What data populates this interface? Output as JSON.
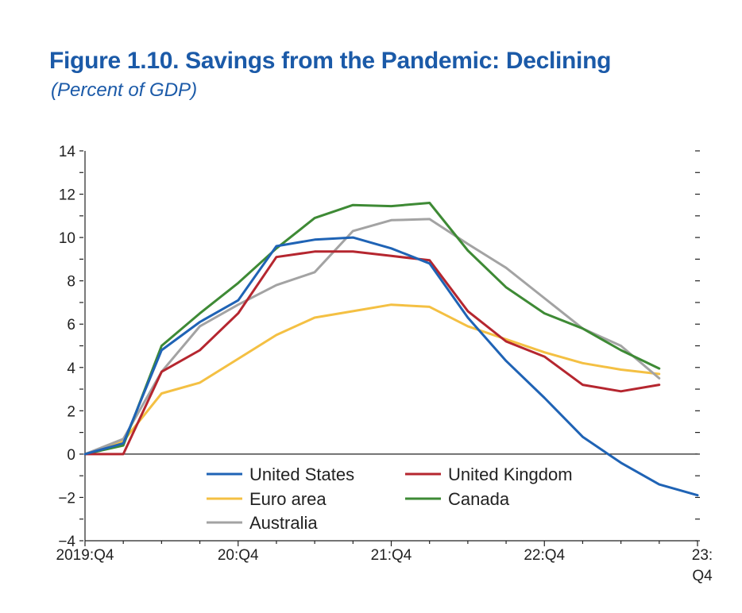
{
  "title": "Figure 1.10.  Savings from the Pandemic: Declining",
  "subtitle": "(Percent of GDP)",
  "chart_data": {
    "type": "line",
    "x": [
      "2019:Q4",
      "20:Q1",
      "20:Q2",
      "20:Q3",
      "20:Q4",
      "21:Q1",
      "21:Q2",
      "21:Q3",
      "21:Q4",
      "22:Q1",
      "22:Q2",
      "22:Q3",
      "22:Q4",
      "23:Q1",
      "23:Q2",
      "23:Q3",
      "23:Q4"
    ],
    "x_tick_labels": [
      {
        "index": 0,
        "lines": [
          "2019:Q4"
        ]
      },
      {
        "index": 4,
        "lines": [
          "20:Q4"
        ]
      },
      {
        "index": 8,
        "lines": [
          "21:Q4"
        ]
      },
      {
        "index": 12,
        "lines": [
          "22:Q4"
        ]
      },
      {
        "index": 16,
        "lines": [
          "23:",
          "Q4"
        ]
      }
    ],
    "y_ticks": [
      -4,
      -2,
      0,
      2,
      4,
      6,
      8,
      10,
      12,
      14
    ],
    "y_tick_labels": [
      "−4",
      "−2",
      "0",
      "2",
      "4",
      "6",
      "8",
      "10",
      "12",
      "14"
    ],
    "ylim": [
      -4,
      14
    ],
    "xlabel": "",
    "ylabel": "",
    "grid": false,
    "legend_position": "lower-center",
    "series": [
      {
        "name": "United States",
        "color": "#1f63b5",
        "values": [
          0,
          0.5,
          4.8,
          6.1,
          7.1,
          9.6,
          9.9,
          10.0,
          9.5,
          8.8,
          6.3,
          4.3,
          2.6,
          0.8,
          -0.4,
          -1.4,
          -1.9
        ]
      },
      {
        "name": "United Kingdom",
        "color": "#b5262f",
        "values": [
          0,
          0,
          3.8,
          4.8,
          6.5,
          9.1,
          9.35,
          9.35,
          9.15,
          8.95,
          6.6,
          5.2,
          4.5,
          3.2,
          2.9,
          3.2,
          null
        ]
      },
      {
        "name": "Euro area",
        "color": "#f4c043",
        "values": [
          0,
          0.6,
          2.8,
          3.3,
          4.4,
          5.5,
          6.3,
          6.6,
          6.9,
          6.8,
          5.9,
          5.3,
          4.7,
          4.2,
          3.9,
          3.7,
          null
        ]
      },
      {
        "name": "Canada",
        "color": "#3e8a35",
        "values": [
          0,
          0.4,
          5.0,
          6.5,
          7.9,
          9.5,
          10.9,
          11.5,
          11.45,
          11.6,
          9.4,
          7.7,
          6.5,
          5.8,
          4.8,
          3.95,
          null
        ]
      },
      {
        "name": "Australia",
        "color": "#a3a3a3",
        "values": [
          0,
          0.7,
          3.8,
          5.9,
          6.9,
          7.8,
          8.4,
          10.3,
          10.8,
          10.85,
          9.7,
          8.6,
          7.2,
          5.8,
          5.0,
          3.5,
          null
        ]
      }
    ]
  }
}
